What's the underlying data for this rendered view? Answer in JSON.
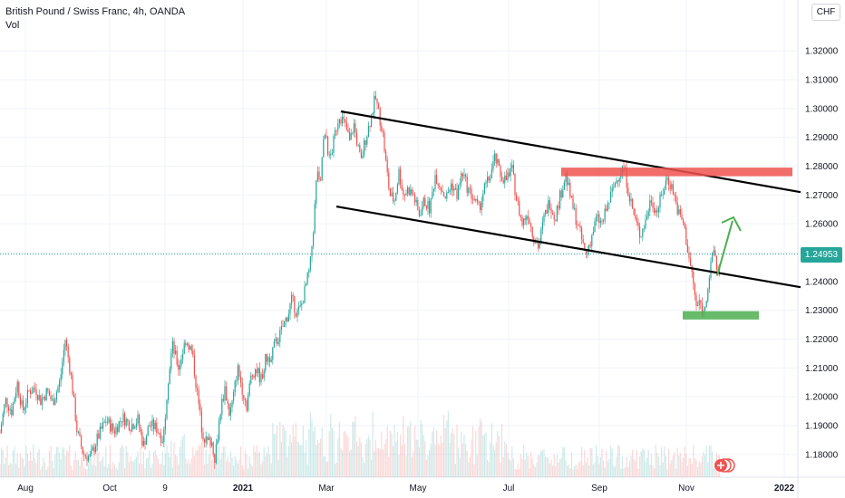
{
  "header": {
    "symbol": "British Pound / Swiss Franc, 4h, OANDA",
    "volume_label": "Vol",
    "currency_badge": "CHF"
  },
  "last_price_label": "1.24953",
  "colors": {
    "up": "#26a69a",
    "down": "#ef5350",
    "resistance_zone": "#ef5350",
    "support_zone": "#4caf50",
    "arrow": "#4caf50",
    "trendline": "#000000",
    "last_price_line": "#26a69a"
  },
  "chart_data": {
    "type": "candlestick",
    "title": "British Pound / Swiss Franc, 4h, OANDA",
    "x_tick_labels": [
      "Aug",
      "Oct",
      "9",
      "2021",
      "Mar",
      "May",
      "Jul",
      "Sep",
      "Nov",
      "2022"
    ],
    "y_tick_labels": [
      "1.18000",
      "1.19000",
      "1.20000",
      "1.21000",
      "1.22000",
      "1.23000",
      "1.24000",
      "1.25000",
      "1.26000",
      "1.27000",
      "1.28000",
      "1.29000",
      "1.30000",
      "1.31000",
      "1.32000"
    ],
    "ylim": [
      1.1765,
      1.3345
    ],
    "price_path": [
      [
        0,
        1.1875
      ],
      [
        6,
        1.199
      ],
      [
        13,
        1.195
      ],
      [
        19,
        1.205
      ],
      [
        25,
        1.195
      ],
      [
        32,
        1.202
      ],
      [
        39,
        1.203
      ],
      [
        45,
        1.1985
      ],
      [
        52,
        1.202
      ],
      [
        58,
        1.198
      ],
      [
        66,
        1.205
      ],
      [
        72,
        1.22
      ],
      [
        78,
        1.208
      ],
      [
        85,
        1.188
      ],
      [
        92,
        1.18
      ],
      [
        100,
        1.179
      ],
      [
        108,
        1.186
      ],
      [
        117,
        1.192
      ],
      [
        126,
        1.188
      ],
      [
        135,
        1.193
      ],
      [
        144,
        1.19
      ],
      [
        152,
        1.192
      ],
      [
        158,
        1.183
      ],
      [
        165,
        1.1905
      ],
      [
        173,
        1.189
      ],
      [
        180,
        1.185
      ],
      [
        185,
        1.205
      ],
      [
        190,
        1.218
      ],
      [
        197,
        1.21
      ],
      [
        205,
        1.22
      ],
      [
        212,
        1.215
      ],
      [
        218,
        1.2
      ],
      [
        223,
        1.188
      ],
      [
        228,
        1.184
      ],
      [
        233,
        1.185
      ],
      [
        237,
        1.179
      ],
      [
        243,
        1.195
      ],
      [
        248,
        1.203
      ],
      [
        253,
        1.194
      ],
      [
        257,
        1.199
      ],
      [
        262,
        1.21
      ],
      [
        267,
        1.203
      ],
      [
        272,
        1.197
      ],
      [
        277,
        1.207
      ],
      [
        282,
        1.21
      ],
      [
        288,
        1.206
      ],
      [
        293,
        1.213
      ],
      [
        298,
        1.214
      ],
      [
        303,
        1.218
      ],
      [
        308,
        1.221
      ],
      [
        313,
        1.225
      ],
      [
        318,
        1.229
      ],
      [
        322,
        1.234
      ],
      [
        327,
        1.229
      ],
      [
        332,
        1.231
      ],
      [
        337,
        1.238
      ],
      [
        342,
        1.245
      ],
      [
        346,
        1.26
      ],
      [
        350,
        1.28
      ],
      [
        353,
        1.27
      ],
      [
        356,
        1.288
      ],
      [
        360,
        1.29
      ],
      [
        363,
        1.282
      ],
      [
        366,
        1.285
      ],
      [
        370,
        1.292
      ],
      [
        374,
        1.298
      ],
      [
        378,
        1.296
      ],
      [
        382,
        1.293
      ],
      [
        386,
        1.288
      ],
      [
        390,
        1.295
      ],
      [
        394,
        1.288
      ],
      [
        398,
        1.281
      ],
      [
        402,
        1.288
      ],
      [
        406,
        1.293
      ],
      [
        410,
        1.298
      ],
      [
        414,
        1.304
      ],
      [
        418,
        1.298
      ],
      [
        422,
        1.292
      ],
      [
        426,
        1.28
      ],
      [
        430,
        1.27
      ],
      [
        435,
        1.268
      ],
      [
        440,
        1.278
      ],
      [
        445,
        1.27
      ],
      [
        450,
        1.272
      ],
      [
        456,
        1.27
      ],
      [
        462,
        1.263
      ],
      [
        468,
        1.268
      ],
      [
        474,
        1.265
      ],
      [
        480,
        1.277
      ],
      [
        486,
        1.273
      ],
      [
        492,
        1.269
      ],
      [
        498,
        1.274
      ],
      [
        504,
        1.27
      ],
      [
        510,
        1.278
      ],
      [
        516,
        1.272
      ],
      [
        522,
        1.269
      ],
      [
        528,
        1.265
      ],
      [
        534,
        1.272
      ],
      [
        540,
        1.276
      ],
      [
        546,
        1.283
      ],
      [
        552,
        1.277
      ],
      [
        558,
        1.275
      ],
      [
        564,
        1.28
      ],
      [
        570,
        1.268
      ],
      [
        576,
        1.26
      ],
      [
        582,
        1.264
      ],
      [
        588,
        1.256
      ],
      [
        594,
        1.252
      ],
      [
        600,
        1.262
      ],
      [
        606,
        1.268
      ],
      [
        612,
        1.262
      ],
      [
        618,
        1.27
      ],
      [
        624,
        1.277
      ],
      [
        630,
        1.268
      ],
      [
        636,
        1.261
      ],
      [
        642,
        1.254
      ],
      [
        646,
        1.249
      ],
      [
        652,
        1.255
      ],
      [
        658,
        1.262
      ],
      [
        664,
        1.26
      ],
      [
        670,
        1.266
      ],
      [
        676,
        1.272
      ],
      [
        682,
        1.277
      ],
      [
        688,
        1.28
      ],
      [
        694,
        1.27
      ],
      [
        700,
        1.262
      ],
      [
        706,
        1.256
      ],
      [
        712,
        1.261
      ],
      [
        718,
        1.269
      ],
      [
        724,
        1.264
      ],
      [
        730,
        1.27
      ],
      [
        736,
        1.276
      ],
      [
        742,
        1.272
      ],
      [
        748,
        1.264
      ],
      [
        754,
        1.26
      ],
      [
        760,
        1.248
      ],
      [
        764,
        1.241
      ],
      [
        768,
        1.231
      ],
      [
        772,
        1.233
      ],
      [
        776,
        1.229
      ],
      [
        780,
        1.237
      ],
      [
        784,
        1.245
      ],
      [
        788,
        1.252
      ],
      [
        791,
        1.242
      ],
      [
        795,
        1.2495
      ]
    ]
  },
  "annotations": {
    "upper_trendline": {
      "from": [
        "Mar",
        1.299
      ],
      "to": [
        "2022",
        1.271
      ]
    },
    "lower_trendline": {
      "from": [
        "Mar",
        1.266
      ],
      "to": [
        "2022",
        1.238
      ]
    },
    "resistance_zone": {
      "low": 1.2765,
      "high": 1.2795
    },
    "support_zone": {
      "low": 1.2268,
      "high": 1.2297
    },
    "projection_arrow": {
      "from": 1.242,
      "to": 1.262
    }
  }
}
